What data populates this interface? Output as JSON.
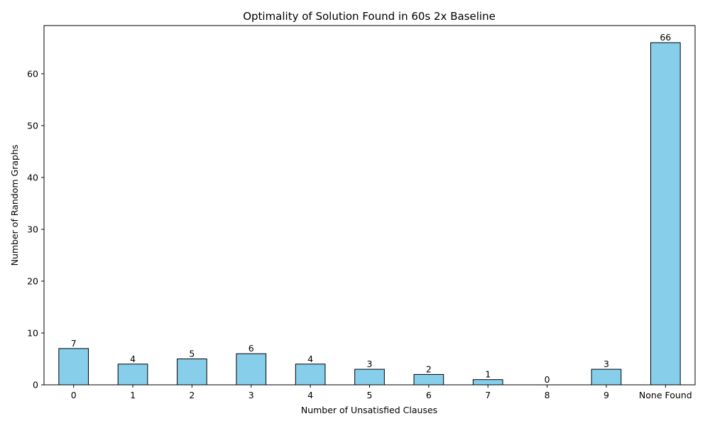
{
  "chart_data": {
    "type": "bar",
    "title": "Optimality of Solution Found in 60s 2x Baseline",
    "xlabel": "Number of Unsatisfied Clauses",
    "ylabel": "Number of Random Graphs",
    "categories": [
      "0",
      "1",
      "2",
      "3",
      "4",
      "5",
      "6",
      "7",
      "8",
      "9",
      "None Found"
    ],
    "values": [
      7,
      4,
      5,
      6,
      4,
      3,
      2,
      1,
      0,
      3,
      66
    ],
    "ylim": [
      0,
      69.3
    ],
    "yticks": [
      0,
      10,
      20,
      30,
      40,
      50,
      60
    ],
    "grid": false,
    "legend": "none",
    "bar_color": "#87ceeb",
    "edge_color": "#000000"
  }
}
